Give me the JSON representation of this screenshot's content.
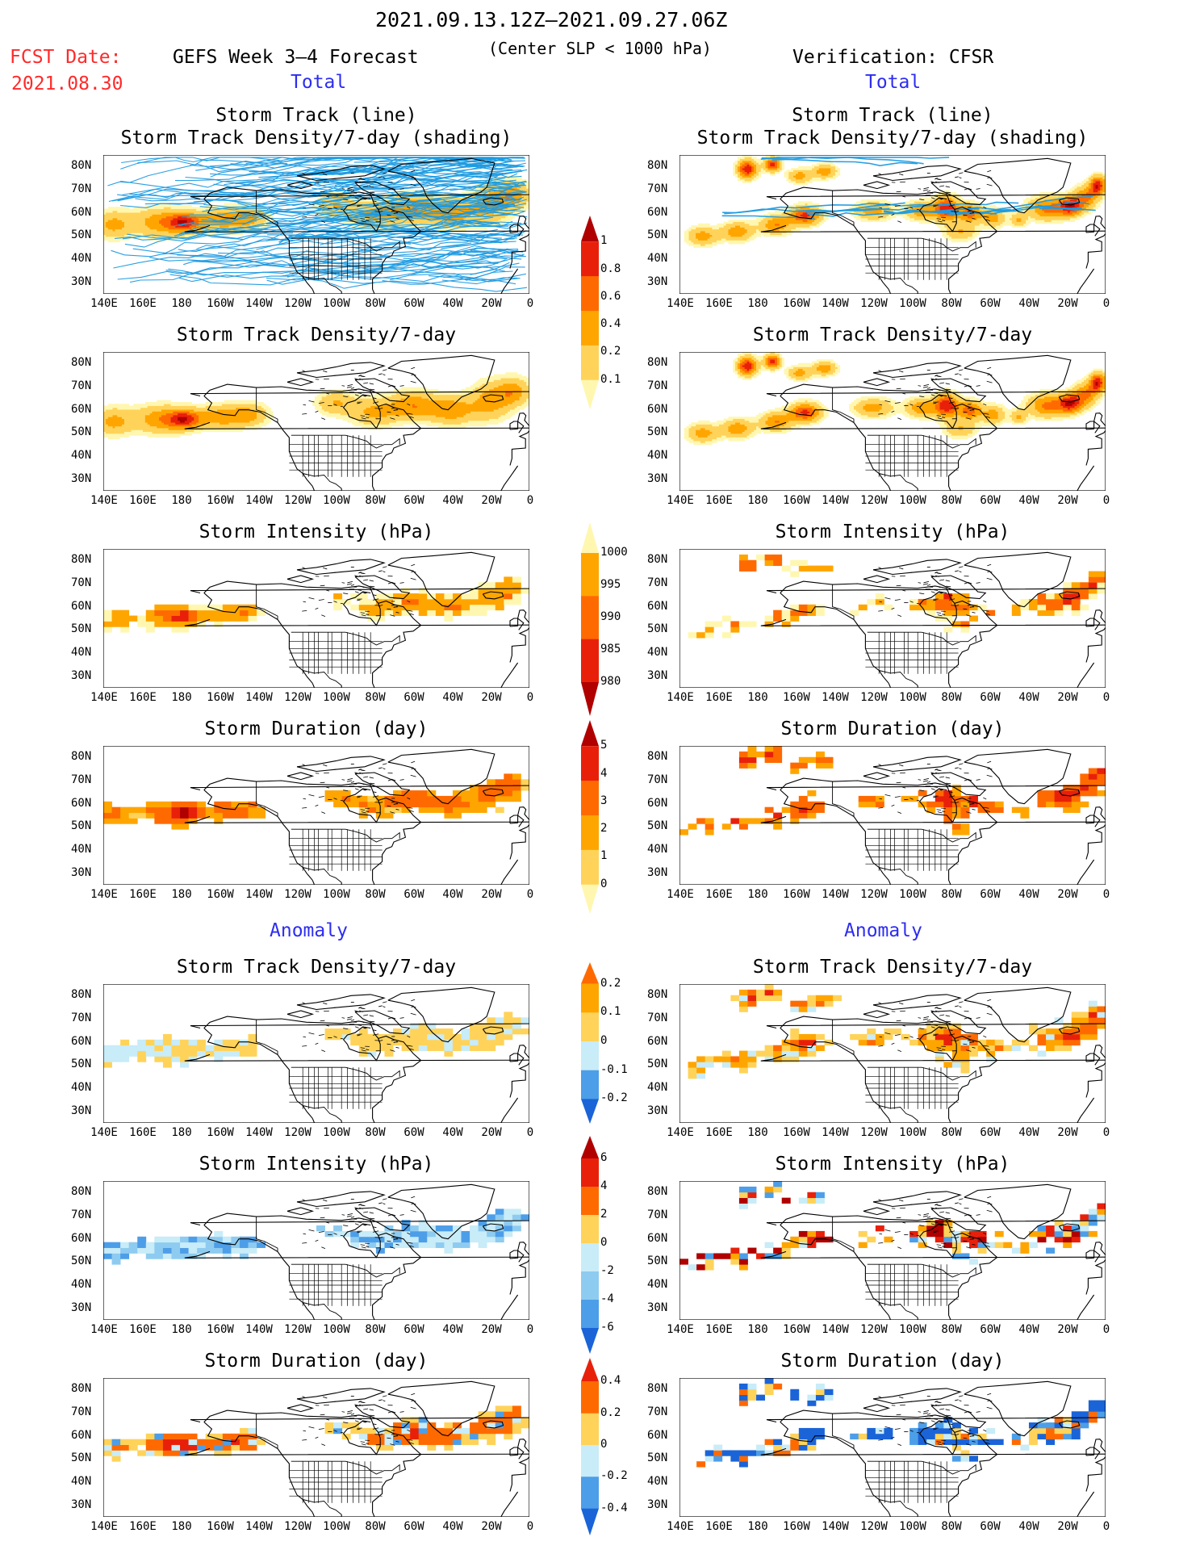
{
  "header": {
    "period": "2021.09.13.12Z–2021.09.27.06Z",
    "criterion": "(Center SLP < 1000 hPa)",
    "fcst_label": "FCST Date:",
    "fcst_date": "2021.08.30",
    "left_title": "GEFS Week 3–4 Forecast",
    "right_title": "Verification: CFSR",
    "total_label": "Total",
    "anomaly_label": "Anomaly"
  },
  "axes": {
    "lat_labels": [
      "80N",
      "70N",
      "60N",
      "50N",
      "40N",
      "30N"
    ],
    "lon_labels": [
      "140E",
      "160E",
      "180",
      "160W",
      "140W",
      "120W",
      "100W",
      "80W",
      "60W",
      "40W",
      "20W",
      "0"
    ]
  },
  "colors": {
    "yellow1": "#fff7b0",
    "yellow2": "#ffd35a",
    "orange1": "#ffa500",
    "orange2": "#ff6a00",
    "red1": "#e8200a",
    "red2": "#b00000",
    "lblue1": "#c8ecf8",
    "lblue2": "#8ecbf0",
    "blue1": "#4d9ee8",
    "blue2": "#1a64d8",
    "track": "#1e9be0"
  },
  "chart_data": [
    {
      "id": "fc-track",
      "type": "heatmap",
      "title": [
        "Storm Track (line)",
        "Storm Track Density/7-day (shading)"
      ],
      "column": "forecast",
      "section": "Total"
    },
    {
      "id": "ob-track",
      "type": "heatmap",
      "title": [
        "Storm Track (line)",
        "Storm Track Density/7-day (shading)"
      ],
      "column": "verification",
      "section": "Total"
    },
    {
      "id": "fc-dens",
      "type": "heatmap",
      "title": [
        "Storm Track Density/7-day"
      ],
      "column": "forecast",
      "section": "Total"
    },
    {
      "id": "ob-dens",
      "type": "heatmap",
      "title": [
        "Storm Track Density/7-day"
      ],
      "column": "verification",
      "section": "Total"
    },
    {
      "id": "fc-int",
      "type": "heatmap",
      "title": [
        "Storm Intensity (hPa)"
      ],
      "column": "forecast",
      "section": "Total"
    },
    {
      "id": "ob-int",
      "type": "heatmap",
      "title": [
        "Storm Intensity (hPa)"
      ],
      "column": "verification",
      "section": "Total"
    },
    {
      "id": "fc-dur",
      "type": "heatmap",
      "title": [
        "Storm Duration (day)"
      ],
      "column": "forecast",
      "section": "Total"
    },
    {
      "id": "ob-dur",
      "type": "heatmap",
      "title": [
        "Storm Duration (day)"
      ],
      "column": "verification",
      "section": "Total"
    },
    {
      "id": "fc-adens",
      "type": "heatmap",
      "title": [
        "Storm Track Density/7-day"
      ],
      "column": "forecast",
      "section": "Anomaly"
    },
    {
      "id": "ob-adens",
      "type": "heatmap",
      "title": [
        "Storm Track Density/7-day"
      ],
      "column": "verification",
      "section": "Anomaly"
    },
    {
      "id": "fc-aint",
      "type": "heatmap",
      "title": [
        "Storm Intensity (hPa)"
      ],
      "column": "forecast",
      "section": "Anomaly"
    },
    {
      "id": "ob-aint",
      "type": "heatmap",
      "title": [
        "Storm Intensity (hPa)"
      ],
      "column": "verification",
      "section": "Anomaly"
    },
    {
      "id": "fc-adur",
      "type": "heatmap",
      "title": [
        "Storm Duration (day)"
      ],
      "column": "forecast",
      "section": "Anomaly"
    },
    {
      "id": "ob-adur",
      "type": "heatmap",
      "title": [
        "Storm Duration (day)"
      ],
      "column": "verification",
      "section": "Anomaly"
    }
  ],
  "colorbars": [
    {
      "id": "cb-dens",
      "labels": [
        "1",
        "0.8",
        "0.6",
        "0.4",
        "0.2",
        "0.1"
      ],
      "colors": [
        "#b00000",
        "#e8200a",
        "#ff6a00",
        "#ffa500",
        "#ffd35a",
        "#fff7b0"
      ]
    },
    {
      "id": "cb-int",
      "labels": [
        "1000",
        "995",
        "990",
        "985",
        "980"
      ],
      "colors": [
        "#fff7b0",
        "#ffa500",
        "#ff6a00",
        "#e8200a",
        "#b00000"
      ]
    },
    {
      "id": "cb-dur",
      "labels": [
        "5",
        "4",
        "3",
        "2",
        "1",
        "0"
      ],
      "colors": [
        "#b00000",
        "#e8200a",
        "#ff6a00",
        "#ffa500",
        "#ffd35a",
        "#fff7b0"
      ]
    },
    {
      "id": "cb-adens",
      "labels": [
        "0.2",
        "0.1",
        "0",
        "-0.1",
        "-0.2"
      ],
      "colors": [
        "#ff6a00",
        "#ffa500",
        "#ffd35a",
        "#c8ecf8",
        "#4d9ee8",
        "#1a64d8"
      ]
    },
    {
      "id": "cb-aint",
      "labels": [
        "6",
        "4",
        "2",
        "0",
        "-2",
        "-4",
        "-6"
      ],
      "colors": [
        "#b00000",
        "#e8200a",
        "#ff6a00",
        "#ffd35a",
        "#c8ecf8",
        "#8ecbf0",
        "#4d9ee8",
        "#1a64d8"
      ]
    },
    {
      "id": "cb-adur",
      "labels": [
        "0.4",
        "0.2",
        "0",
        "-0.2",
        "-0.4"
      ],
      "colors": [
        "#e8200a",
        "#ff6a00",
        "#ffd35a",
        "#c8ecf8",
        "#4d9ee8",
        "#1a64d8"
      ]
    }
  ]
}
